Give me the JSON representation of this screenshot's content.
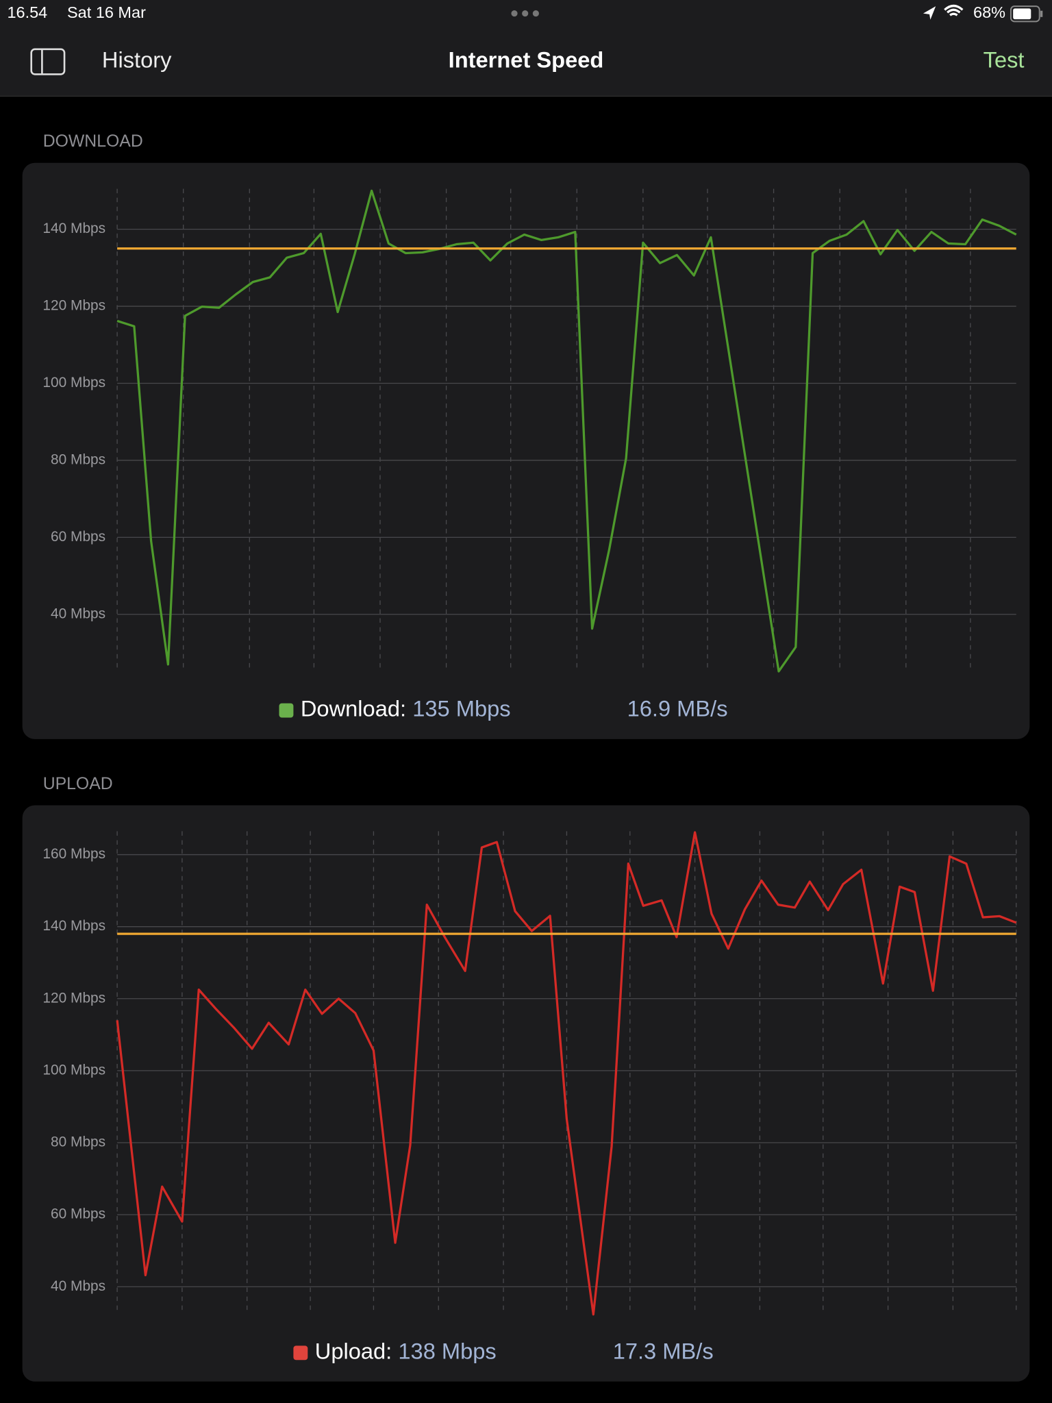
{
  "status_bar": {
    "time": "16.54",
    "date": "Sat 16 Mar",
    "battery": "68%"
  },
  "nav": {
    "back": "History",
    "title": "Internet Speed",
    "action": "Test"
  },
  "chart_data": [
    {
      "type": "line",
      "section": "DOWNLOAD",
      "x": [
        0,
        1,
        2,
        3,
        4,
        5,
        6,
        7,
        8,
        9,
        10,
        11,
        12,
        13,
        14,
        15,
        16,
        17,
        18,
        19,
        20,
        21,
        22,
        23,
        24,
        25,
        26,
        27,
        28,
        29,
        30,
        31,
        32,
        33,
        34,
        35,
        39,
        40,
        41,
        42,
        43,
        44,
        45,
        46,
        47,
        48,
        49,
        50,
        51,
        52,
        53
      ],
      "series": [
        {
          "name": "Download:",
          "color": "#4e9a2c",
          "legend_color": "#6ab04c",
          "values": [
            116.2,
            114.8,
            59.0,
            27.0,
            117.5,
            119.9,
            119.6,
            123.1,
            126.3,
            127.5,
            132.6,
            133.8,
            138.8,
            118.5,
            133.5,
            150.0,
            136.3,
            133.8,
            134.0,
            134.9,
            136.1,
            136.5,
            131.9,
            136.3,
            138.6,
            137.2,
            137.9,
            139.3,
            36.3,
            56.7,
            80.5,
            136.5,
            131.2,
            133.3,
            128.0,
            137.9,
            25.2,
            31.5,
            133.8,
            137.0,
            138.6,
            142.1,
            133.5,
            139.8,
            134.4,
            139.3,
            136.3,
            136.1,
            142.5,
            140.9,
            138.6
          ]
        }
      ],
      "average": 135,
      "average_color": "#f0a832",
      "average_label": "135 Mbps",
      "rate": "16.9 MB/s",
      "xlim": [
        0,
        53
      ],
      "xticks": [
        0,
        3.9,
        7.8,
        11.6,
        15.5,
        19.4,
        23.2,
        27.1,
        31.0,
        34.8,
        38.7,
        42.6,
        46.5,
        50.3
      ],
      "ylim": [
        25.5,
        150.5
      ],
      "yticks": [
        {
          "value": 40,
          "label": "40 Mbps"
        },
        {
          "value": 60,
          "label": "60 Mbps"
        },
        {
          "value": 80,
          "label": "80 Mbps"
        },
        {
          "value": 100,
          "label": "100 Mbps"
        },
        {
          "value": 120,
          "label": "120 Mbps"
        },
        {
          "value": 140,
          "label": "140 Mbps"
        }
      ],
      "grid": true
    },
    {
      "type": "line",
      "section": "UPLOAD",
      "x": [
        0,
        1.7,
        2.7,
        3.9,
        4.9,
        5.9,
        7.0,
        8.1,
        9.1,
        10.3,
        11.3,
        12.3,
        13.3,
        14.3,
        15.4,
        16.7,
        17.6,
        18.6,
        19.7,
        20.9,
        21.9,
        22.8,
        23.9,
        24.9,
        26.0,
        27.0,
        28.6,
        29.7,
        30.7,
        31.6,
        32.7,
        33.6,
        34.7,
        35.7,
        36.7,
        37.7,
        38.7,
        39.7,
        40.7,
        41.6,
        42.7,
        43.6,
        44.7,
        46.0,
        47.0,
        47.9,
        49.0,
        50.0,
        51.0,
        52.0,
        53.0,
        54.0
      ],
      "series": [
        {
          "name": "Upload:",
          "color": "#d42a26",
          "legend_color": "#e0443c",
          "values": [
            114.0,
            43.2,
            67.8,
            58.1,
            122.5,
            117.3,
            112.0,
            106.1,
            113.3,
            107.3,
            122.5,
            115.8,
            120.0,
            116.0,
            105.6,
            52.2,
            79.3,
            146.1,
            136.9,
            127.7,
            162.0,
            163.5,
            144.3,
            138.8,
            143.0,
            86.6,
            32.3,
            79.0,
            157.5,
            145.8,
            147.3,
            137.1,
            166.2,
            143.6,
            133.9,
            144.8,
            152.8,
            146.1,
            145.3,
            152.5,
            144.6,
            151.8,
            155.8,
            124.2,
            151.1,
            149.6,
            122.2,
            159.5,
            157.5,
            142.6,
            142.9,
            141.1
          ]
        }
      ],
      "average": 138,
      "average_color": "#f0a832",
      "average_label": "138 Mbps",
      "rate": "17.3 MB/s",
      "xlim": [
        0,
        54
      ],
      "xticks": [
        0,
        3.9,
        7.8,
        11.6,
        15.4,
        19.3,
        23.2,
        27.0,
        30.8,
        34.7,
        38.6,
        42.4,
        46.3,
        50.2,
        54.0
      ],
      "ylim": [
        32.8,
        166.5
      ],
      "yticks": [
        {
          "value": 40,
          "label": "40 Mbps"
        },
        {
          "value": 60,
          "label": "60 Mbps"
        },
        {
          "value": 80,
          "label": "80 Mbps"
        },
        {
          "value": 100,
          "label": "100 Mbps"
        },
        {
          "value": 120,
          "label": "120 Mbps"
        },
        {
          "value": 140,
          "label": "140 Mbps"
        },
        {
          "value": 160,
          "label": "160 Mbps"
        }
      ],
      "grid": true
    }
  ]
}
